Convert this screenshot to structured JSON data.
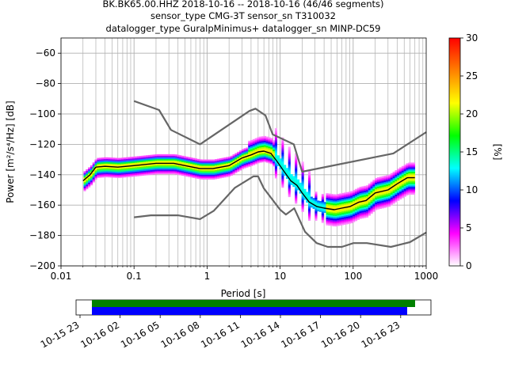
{
  "chart_data": [
    {
      "type": "heatmap",
      "title_lines": [
        "BK.BK65.00.HHZ   2018-10-16 -- 2018-10-16  (46/46 segments)",
        "sensor_type CMG-3T sensor_sn T310032",
        "datalogger_type GuralpMinimus+ datalogger_sn MINP-DC59"
      ],
      "xlabel": "Period [s]",
      "ylabel": "Power [m²/s⁴/Hz] [dB]",
      "xscale": "log",
      "xlim": [
        0.01,
        1000
      ],
      "ylim": [
        -200,
        -50
      ],
      "xticks": [
        {
          "value": 0.01,
          "label": "0.01"
        },
        {
          "value": 0.1,
          "label": "0.1"
        },
        {
          "value": 1,
          "label": "1"
        },
        {
          "value": 10,
          "label": "10"
        },
        {
          "value": 100,
          "label": "100"
        },
        {
          "value": 1000,
          "label": "1000"
        }
      ],
      "yticks": [
        -60,
        -80,
        -100,
        -120,
        -140,
        -160,
        -180,
        -200
      ],
      "grid": true,
      "colorbar": {
        "label": "[%]",
        "range": [
          0,
          30
        ],
        "ticks": [
          0,
          5,
          10,
          15,
          20,
          25,
          30
        ],
        "colormap": [
          "#ffffff",
          "#ff00ff",
          "#0000ff",
          "#00ffff",
          "#00ff00",
          "#ffff00",
          "#ff8000",
          "#ff0000"
        ]
      },
      "series": [
        {
          "name": "noise model upper",
          "style": "gray-line",
          "color": "#666666",
          "points": [
            [
              0.1,
              -91.5
            ],
            [
              0.22,
              -97.4
            ],
            [
              0.32,
              -110.5
            ],
            [
              0.8,
              -120
            ],
            [
              3.8,
              -98
            ],
            [
              4.6,
              -96.5
            ],
            [
              6.3,
              -101
            ],
            [
              7.9,
              -113.5
            ],
            [
              15.4,
              -120
            ],
            [
              20,
              -138
            ],
            [
              354.8,
              -126
            ],
            [
              1000,
              -112
            ]
          ]
        },
        {
          "name": "noise model lower",
          "style": "gray-line",
          "color": "#666666",
          "points": [
            [
              0.1,
              -168
            ],
            [
              0.17,
              -166.7
            ],
            [
              0.4,
              -166.7
            ],
            [
              0.8,
              -169.2
            ],
            [
              1.24,
              -163.7
            ],
            [
              2.4,
              -148.6
            ],
            [
              4.3,
              -141.1
            ],
            [
              5,
              -141.1
            ],
            [
              6,
              -149
            ],
            [
              10,
              -163
            ],
            [
              12,
              -166.2
            ],
            [
              15.6,
              -162.1
            ],
            [
              21.9,
              -177.5
            ],
            [
              31.6,
              -185
            ],
            [
              45,
              -187.5
            ],
            [
              70,
              -187.5
            ],
            [
              101,
              -185
            ],
            [
              154,
              -185
            ],
            [
              328,
              -187.5
            ],
            [
              600,
              -184.4
            ],
            [
              1000,
              -178
            ]
          ]
        },
        {
          "name": "mean",
          "style": "black-line",
          "color": "#000000",
          "points": [
            [
              0.02,
              -144
            ],
            [
              0.025,
              -140
            ],
            [
              0.03,
              -135
            ],
            [
              0.04,
              -134.5
            ],
            [
              0.06,
              -135
            ],
            [
              0.1,
              -134
            ],
            [
              0.2,
              -132.5
            ],
            [
              0.35,
              -132.5
            ],
            [
              0.5,
              -134
            ],
            [
              0.8,
              -136
            ],
            [
              1.2,
              -136
            ],
            [
              2,
              -134
            ],
            [
              3,
              -129
            ],
            [
              4,
              -127
            ],
            [
              5,
              -125
            ],
            [
              6,
              -124.5
            ],
            [
              7.5,
              -126
            ],
            [
              9,
              -131
            ],
            [
              11,
              -137
            ],
            [
              14,
              -144
            ],
            [
              17,
              -147
            ],
            [
              20,
              -152
            ],
            [
              25,
              -158
            ],
            [
              32,
              -161
            ],
            [
              40,
              -162
            ],
            [
              55,
              -163
            ],
            [
              70,
              -162
            ],
            [
              90,
              -161
            ],
            [
              120,
              -158
            ],
            [
              150,
              -157
            ],
            [
              200,
              -152
            ],
            [
              300,
              -150
            ],
            [
              400,
              -146
            ],
            [
              550,
              -142
            ],
            [
              700,
              -142
            ]
          ]
        }
      ]
    },
    {
      "type": "timeline",
      "xticks": [
        "10-15 23",
        "10-16 02",
        "10-16 05",
        "10-16 08",
        "10-16 11",
        "10-16 14",
        "10-16 17",
        "10-16 20",
        "10-16 23"
      ],
      "bars": [
        {
          "name": "data coverage",
          "color": "#008000",
          "start": "10-16 00:00",
          "end": "10-17 00:00"
        },
        {
          "name": "psd segments",
          "color": "#0000ff",
          "start": "10-16 00:00",
          "end": "10-16 23:30"
        }
      ]
    }
  ]
}
